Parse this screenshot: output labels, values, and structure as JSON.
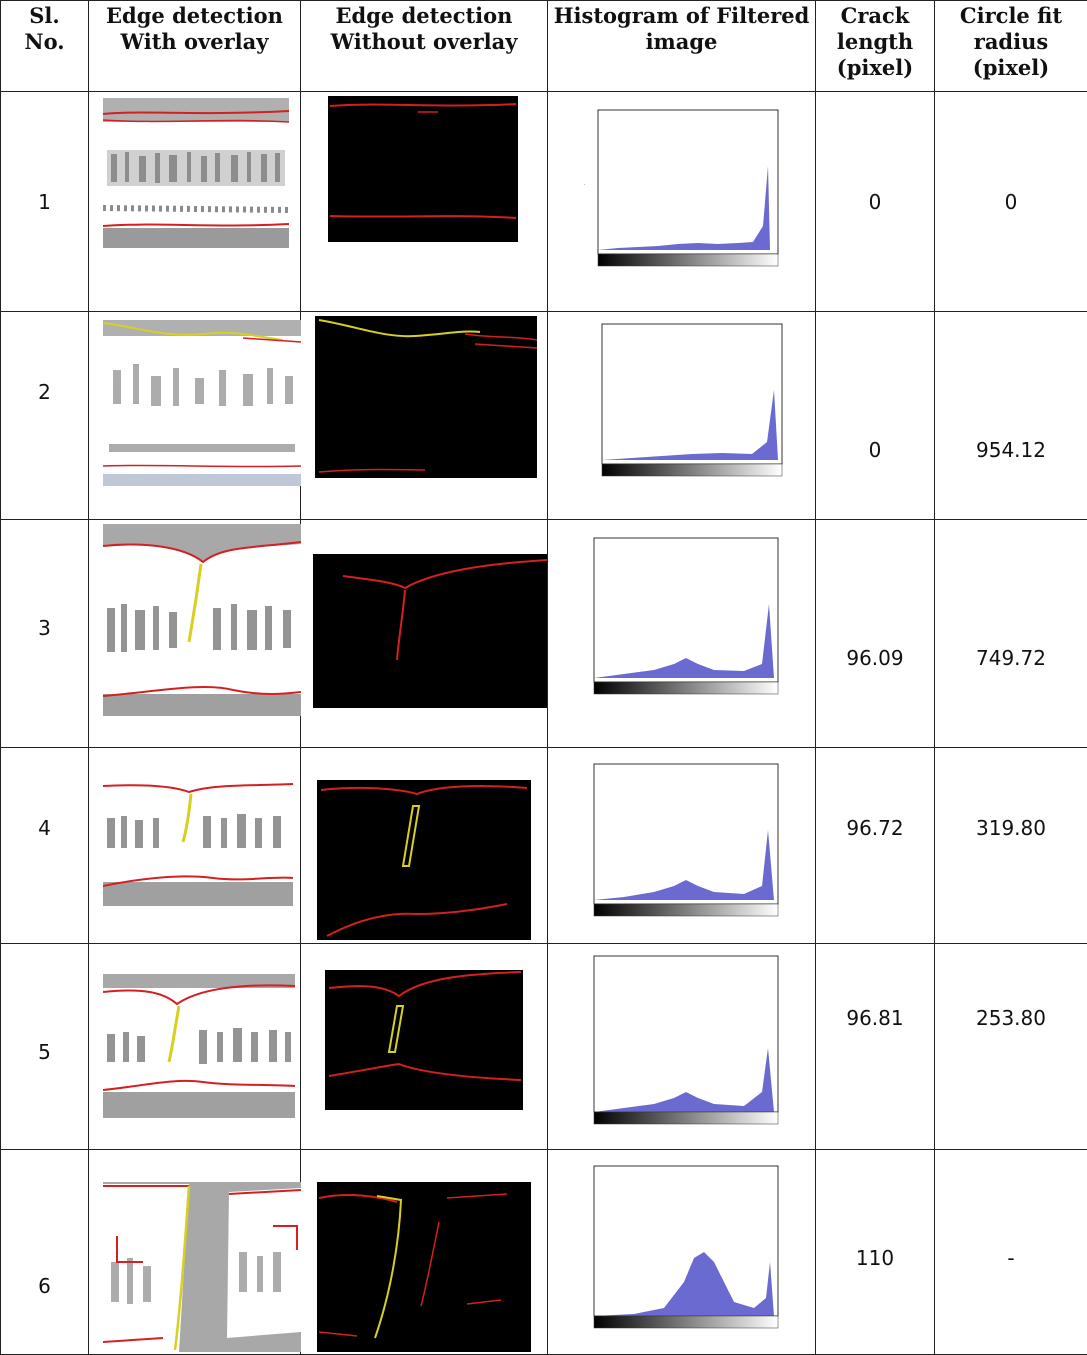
{
  "headers": {
    "sl_no": "Sl.\nNo.",
    "overlay": "Edge detection\nWith overlay",
    "no_overlay": "Edge detection\nWithout overlay",
    "histogram": "Histogram of Filtered\nimage",
    "crack_length": "Crack\nlength\n(pixel)",
    "circle_fit": "Circle fit\nradius\n(pixel)"
  },
  "rows": [
    {
      "sl": "1",
      "crack_length": "0",
      "circle_fit": "0"
    },
    {
      "sl": "2",
      "crack_length": "0",
      "circle_fit": "954.12"
    },
    {
      "sl": "3",
      "crack_length": "96.09",
      "circle_fit": "749.72"
    },
    {
      "sl": "4",
      "crack_length": "96.72",
      "circle_fit": "319.80"
    },
    {
      "sl": "5",
      "crack_length": "96.81",
      "circle_fit": "253.80"
    },
    {
      "sl": "6",
      "crack_length": "110",
      "circle_fit": "-"
    }
  ],
  "colors": {
    "edge_red": "#d42020",
    "crack_yellow": "#d8d020",
    "hist_blue": "#5050c8",
    "texture_gray": "#9a9a9a"
  }
}
